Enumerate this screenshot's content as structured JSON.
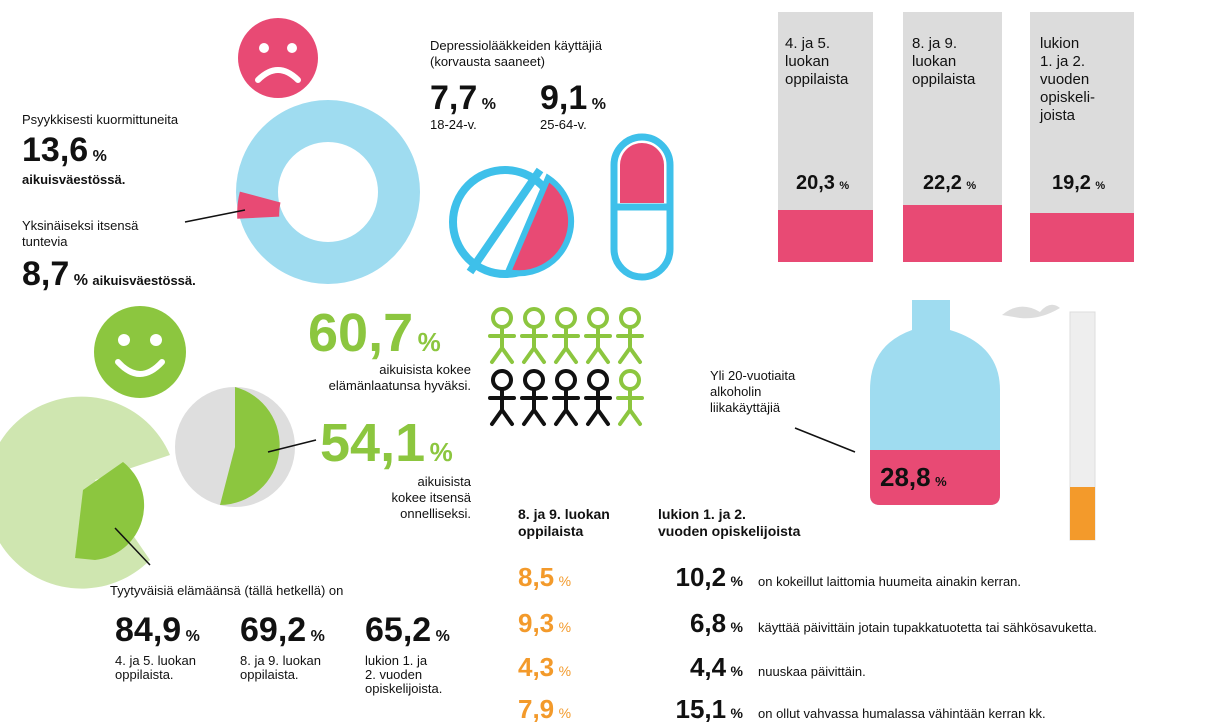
{
  "psyk": {
    "label": "Psyykkisesti kuormittuneita",
    "value": "13,6",
    "unit": "%",
    "suffix": "aikuisväestössä."
  },
  "yksin": {
    "label": "Yksinäiseksi itsensä\ntuntevia",
    "value": "8,7",
    "unit": "%",
    "suffix": "aikuisväestössä."
  },
  "depr": {
    "label": "Depressiolääkkeiden käyttäjiä\n(korvausta saaneet)",
    "items": [
      {
        "value": "7,7",
        "unit": "%",
        "age": "18-24-v."
      },
      {
        "value": "9,1",
        "unit": "%",
        "age": "25-64-v."
      }
    ]
  },
  "school": {
    "items": [
      {
        "label": "4. ja 5.\nluokan\noppilaista",
        "value": "20,3",
        "unit": "%"
      },
      {
        "label": "8. ja 9.\nluokan\noppilaista",
        "value": "22,2",
        "unit": "%"
      },
      {
        "label": "lukion\n1. ja 2.\nvuoden\nopiskeli-\njoista",
        "value": "19,2",
        "unit": "%"
      }
    ]
  },
  "quality": {
    "value": "60,7",
    "unit": "%",
    "label": "aikuisista kokee\nelämänlaatunsa hyväksi."
  },
  "happy": {
    "value": "54,1",
    "unit": "%",
    "label": "aikuisista\nkokee itsensä\nonnelliseksi."
  },
  "alcohol": {
    "label": "Yli 20-vuotiaita\nalkoholin\nliikakäyttäjiä",
    "value": "28,8",
    "unit": "%"
  },
  "satisfied": {
    "label": "Tyytyväisiä elämäänsä (tällä hetkellä) on",
    "items": [
      {
        "value": "84,9",
        "unit": "%",
        "group": "4. ja 5. luokan\noppilaista."
      },
      {
        "value": "69,2",
        "unit": "%",
        "group": "8. ja 9. luokan\noppilaista."
      },
      {
        "value": "65,2",
        "unit": "%",
        "group": "lukion 1. ja\n2. vuoden\nopiskelijoista."
      }
    ]
  },
  "table": {
    "headers": [
      "8. ja 9. luokan\noppilaista",
      "lukion 1. ja 2.\nvuoden opiskelijoista"
    ],
    "rows": [
      {
        "a": "8,5",
        "b": "10,2",
        "unit": "%",
        "text": "on kokeillut laittomia huumeita ainakin kerran."
      },
      {
        "a": "9,3",
        "b": "6,8",
        "unit": "%",
        "text": "käyttää päivittäin jotain tupakkatuotetta tai sähkösavuketta."
      },
      {
        "a": "4,3",
        "b": "4,4",
        "unit": "%",
        "text": "nuuskaa päivittäin."
      },
      {
        "a": "7,9",
        "b": "15,1",
        "unit": "%",
        "text": "on ollut vahvassa humalassa vähintään kerran kk."
      }
    ]
  }
}
